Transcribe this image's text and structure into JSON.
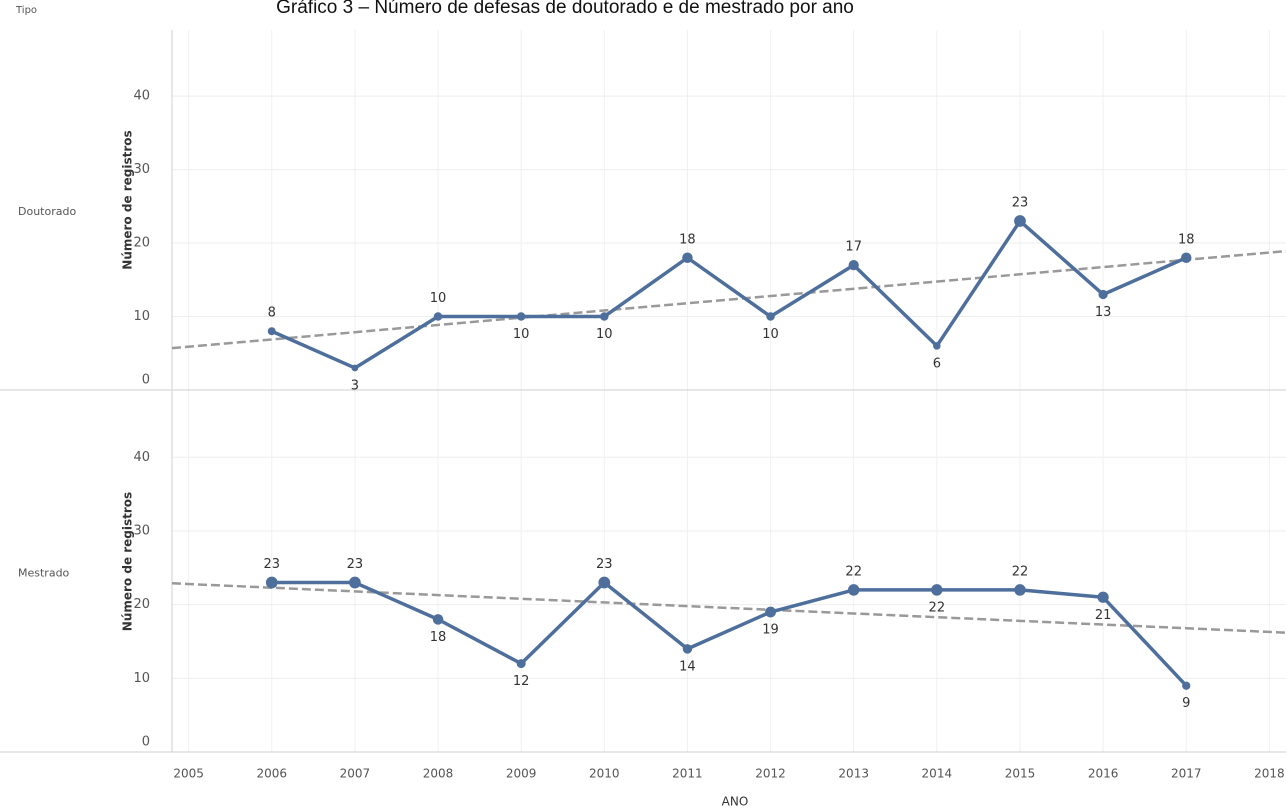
{
  "chart_data": {
    "type": "line",
    "title": "Gráfico 3 – Número de defesas de doutorado e de mestrado por ano",
    "facet_label": "Tipo",
    "x_label": "ANO",
    "y_label": "Número de registros",
    "x": [
      2006,
      2007,
      2008,
      2009,
      2010,
      2011,
      2012,
      2013,
      2014,
      2015,
      2016,
      2017
    ],
    "xlim": [
      2004.8,
      2018.2
    ],
    "xticks": [
      2005,
      2006,
      2007,
      2008,
      2009,
      2010,
      2011,
      2012,
      2013,
      2014,
      2015,
      2016,
      2017,
      2018
    ],
    "ylim": [
      0,
      49
    ],
    "yticks": [
      0,
      10,
      20,
      30,
      40
    ],
    "grid": true,
    "series": [
      {
        "name": "Doutorado",
        "color": "#4e6f9c",
        "values": [
          8,
          3,
          10,
          10,
          10,
          18,
          10,
          17,
          6,
          23,
          13,
          18
        ],
        "trend": {
          "x": [
            2004.8,
            2018.2
          ],
          "values": [
            5.7,
            18.9
          ]
        }
      },
      {
        "name": "Mestrado",
        "color": "#4e6f9c",
        "values": [
          23,
          23,
          18,
          12,
          23,
          14,
          19,
          22,
          22,
          22,
          21,
          9
        ],
        "trend": {
          "x": [
            2004.8,
            2018.2
          ],
          "values": [
            22.9,
            16.2
          ]
        }
      }
    ]
  }
}
